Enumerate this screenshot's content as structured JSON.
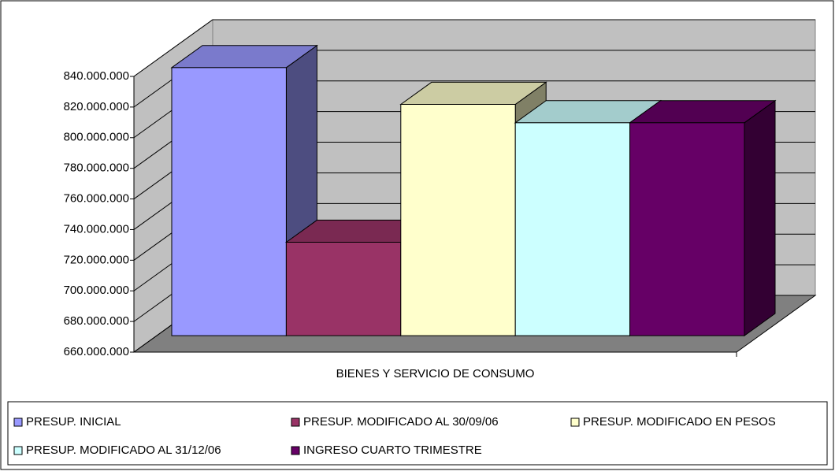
{
  "chart_data": {
    "type": "bar3d",
    "categories": [
      "BIENES Y SERVICIO DE CONSUMO"
    ],
    "series": [
      {
        "name": "PRESUP. INICIAL",
        "color": "#9999ff",
        "values": [
          835000000
        ]
      },
      {
        "name": "PRESUP. MODIFICADO AL 30/09/06",
        "color": "#993366",
        "values": [
          721000000
        ]
      },
      {
        "name": "PRESUP. MODIFICADO EN PESOS",
        "color": "#ffffcc",
        "values": [
          811000000
        ]
      },
      {
        "name": "PRESUP. MODIFICADO AL 31/12/06",
        "color": "#ccffff",
        "values": [
          799000000
        ]
      },
      {
        "name": "INGRESO CUARTO TRIMESTRE",
        "color": "#660066",
        "values": [
          799000000
        ]
      }
    ],
    "ylim": [
      660000000,
      840000000
    ],
    "yticks": [
      {
        "value": 660000000,
        "label": "660.000.000"
      },
      {
        "value": 680000000,
        "label": "680.000.000"
      },
      {
        "value": 700000000,
        "label": "700.000.000"
      },
      {
        "value": 720000000,
        "label": "720.000.000"
      },
      {
        "value": 740000000,
        "label": "740.000.000"
      },
      {
        "value": 760000000,
        "label": "760.000.000"
      },
      {
        "value": 780000000,
        "label": "780.000.000"
      },
      {
        "value": 800000000,
        "label": "800.000.000"
      },
      {
        "value": 820000000,
        "label": "820.000.000"
      },
      {
        "value": 840000000,
        "label": "840.000.000"
      }
    ],
    "grid": true,
    "legend": "bottom"
  }
}
